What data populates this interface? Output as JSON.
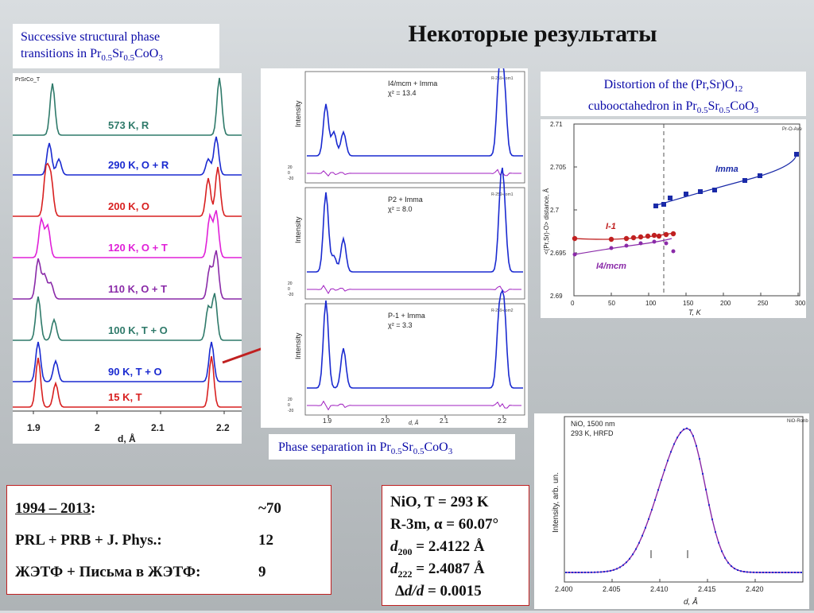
{
  "title": "Некоторые результаты",
  "caption_left": {
    "line1": "Successive structural phase",
    "line2_text": "transitions in Pr",
    "sub1": "0.5",
    "sr": "Sr",
    "sub2": "0.5",
    "coo": "CoO",
    "sub3": "3"
  },
  "caption_mid": {
    "text": "Phase separation in Pr",
    "sub1": "0.5",
    "sr": "Sr",
    "sub2": "0.5",
    "coo": "CoO",
    "sub3": "3"
  },
  "caption_right": {
    "line1_a": "Distortion of the (Pr,Sr)O",
    "line1_sub": "12",
    "line2_a": "cubooctahedron in Pr",
    "sub1": "0.5",
    "sr": "Sr",
    "sub2": "0.5",
    "coo": "CoO",
    "sub3": "3"
  },
  "left_plot": {
    "tag": "PrSrCo_T",
    "labels": [
      "573 K, R",
      "290 K, O + R",
      "200 K, O",
      "120 K, O + T",
      "110 K, O + T",
      "100 K, T + O",
      "90 K, T + O",
      "15 K, T"
    ],
    "label_colors": [
      "#2f7a6a",
      "#1a2ad0",
      "#d82020",
      "#e020d8",
      "#8a2aa8",
      "#2f7a6a",
      "#1a2ad0",
      "#d82020"
    ],
    "xticks": [
      "1.9",
      "2",
      "2.1",
      "2.2"
    ],
    "xlabel": "d, Å"
  },
  "mid_plot": {
    "panels": [
      {
        "tag": "R-259-com1",
        "fit": "I4/mcm + Imma",
        "chi": "χ² = 13.4"
      },
      {
        "tag": "R-259-com1",
        "fit": "P2 + Imma",
        "chi": "χ² = 8.0"
      },
      {
        "tag": "R-259-com2",
        "fit": "P-1 + Imma",
        "chi": "χ² = 3.3"
      }
    ],
    "ylabel": "Intensity",
    "diff_ticks": [
      "20",
      "0",
      "-20"
    ],
    "xticks": [
      "1.9",
      "2.0",
      "2.1",
      "2.2"
    ],
    "xlabel": "d, Å"
  },
  "right_plot": {
    "tag": "Pr-O-Ave",
    "ylabel": "<(Pr,Sr)-O> distance, Å",
    "xlabel": "T, K",
    "yticks": [
      "2.71",
      "2.705",
      "2.7",
      "2.695",
      "2.69"
    ],
    "xticks": [
      "0",
      "50",
      "100",
      "150",
      "200",
      "250",
      "300"
    ],
    "labels": {
      "imma": "Imma",
      "i1": "I-1",
      "i4": "I4/mcm"
    }
  },
  "nio_plot": {
    "tag": "NiO-Ronb",
    "legend": [
      "NiO, 1500 nm",
      "293 K, HRFD"
    ],
    "ylabel": "Intensity, arb. un.",
    "xticks": [
      "2.400",
      "2.405",
      "2.410",
      "2.415",
      "2.420"
    ],
    "xlabel": "d, Å"
  },
  "stats": {
    "rows": [
      {
        "label": "1994 – 2013",
        "suffix": ":",
        "value": "~70"
      },
      {
        "label": "PRL + PRB + J. Phys.:",
        "value": "12"
      },
      {
        "label": "ЖЭТФ + Письма в ЖЭТФ:",
        "value": "9"
      }
    ]
  },
  "nio": {
    "line1": "NiO, T = 293 K",
    "line2": "R-3m, α = 60.07°",
    "d200_pre": "d",
    "d200_sub": "200",
    "d200_val": " = 2.4122 Å",
    "d222_pre": "d",
    "d222_sub": "222",
    "d222_val": " = 2.4087 Å",
    "dd_pre": "Δ",
    "dd_italic": "d/d",
    "dd_val": " = 0.0015"
  },
  "colors": {
    "caption": "#0a0aa8",
    "border": "#c02020"
  }
}
